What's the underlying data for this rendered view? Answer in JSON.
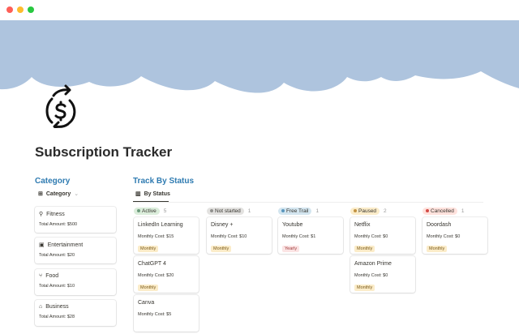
{
  "window_controls": {
    "colors": [
      "#fe5f57",
      "#febc2e",
      "#28c840"
    ]
  },
  "banner_color": "#aec4de",
  "page": {
    "icon": "dollar-refresh-icon",
    "title": "Subscription Tracker"
  },
  "category": {
    "heading": "Category",
    "view_label": "Category",
    "view_icon": "gallery-icon",
    "items": [
      {
        "icon": "running-icon",
        "glyph": "⚲",
        "name": "Fitness",
        "total": "Total Amount: $500"
      },
      {
        "icon": "tv-icon",
        "glyph": "▣",
        "name": "Entertainment",
        "total": "Total Amount: $20"
      },
      {
        "icon": "fork-knife-icon",
        "glyph": "⑂",
        "name": "Food",
        "total": "Total Amount: $10"
      },
      {
        "icon": "briefcase-icon",
        "glyph": "⌂",
        "name": "Business",
        "total": "Total Amount: $28"
      }
    ]
  },
  "status": {
    "heading": "Track By Status",
    "view_label": "By Status",
    "view_icon": "board-icon",
    "columns": [
      {
        "label": "Active",
        "count": "5",
        "bg": "#dbeddb",
        "dot": "#6c9b7d",
        "cards": [
          {
            "title": "LinkedIn Learning",
            "cost": "Monthly Cost: $15",
            "tag": "Monthly",
            "tag_bg": "#fbecc9",
            "tag_fg": "#7a5a1a"
          },
          {
            "title": "ChatGPT 4",
            "cost": "Monthly Cost: $20",
            "tag": "Monthly",
            "tag_bg": "#fbecc9",
            "tag_fg": "#7a5a1a"
          },
          {
            "title": "Canva",
            "cost": "Monthly Cost: $5",
            "tag": "",
            "tag_bg": "#fbecc9",
            "tag_fg": "#7a5a1a"
          }
        ]
      },
      {
        "label": "Not started",
        "count": "1",
        "bg": "#e3e2e0",
        "dot": "#91918e",
        "cards": [
          {
            "title": "Disney +",
            "cost": "Monthly Cost: $10",
            "tag": "Monthly",
            "tag_bg": "#fbecc9",
            "tag_fg": "#7a5a1a"
          }
        ]
      },
      {
        "label": "Free Trail",
        "count": "1",
        "bg": "#d3e5ef",
        "dot": "#5b97bd",
        "cards": [
          {
            "title": "Youtube",
            "cost": "Monthly Cost: $1",
            "tag": "Yearly",
            "tag_bg": "#fbe4e4",
            "tag_fg": "#a03b3b"
          }
        ]
      },
      {
        "label": "Paused",
        "count": "2",
        "bg": "#fbecc9",
        "dot": "#c29343",
        "cards": [
          {
            "title": "Netflix",
            "cost": "Monthly Cost: $0",
            "tag": "Monthly",
            "tag_bg": "#fbecc9",
            "tag_fg": "#7a5a1a"
          },
          {
            "title": "Amazon Prime",
            "cost": "Monthly Cost: $0",
            "tag": "Monthly",
            "tag_bg": "#fbecc9",
            "tag_fg": "#7a5a1a"
          }
        ]
      },
      {
        "label": "Cancelled",
        "count": "1",
        "bg": "#ffe2dd",
        "dot": "#d44c47",
        "cards": [
          {
            "title": "Doordash",
            "cost": "Monthly Cost: $0",
            "tag": "Monthly",
            "tag_bg": "#fbecc9",
            "tag_fg": "#7a5a1a"
          }
        ]
      }
    ]
  }
}
